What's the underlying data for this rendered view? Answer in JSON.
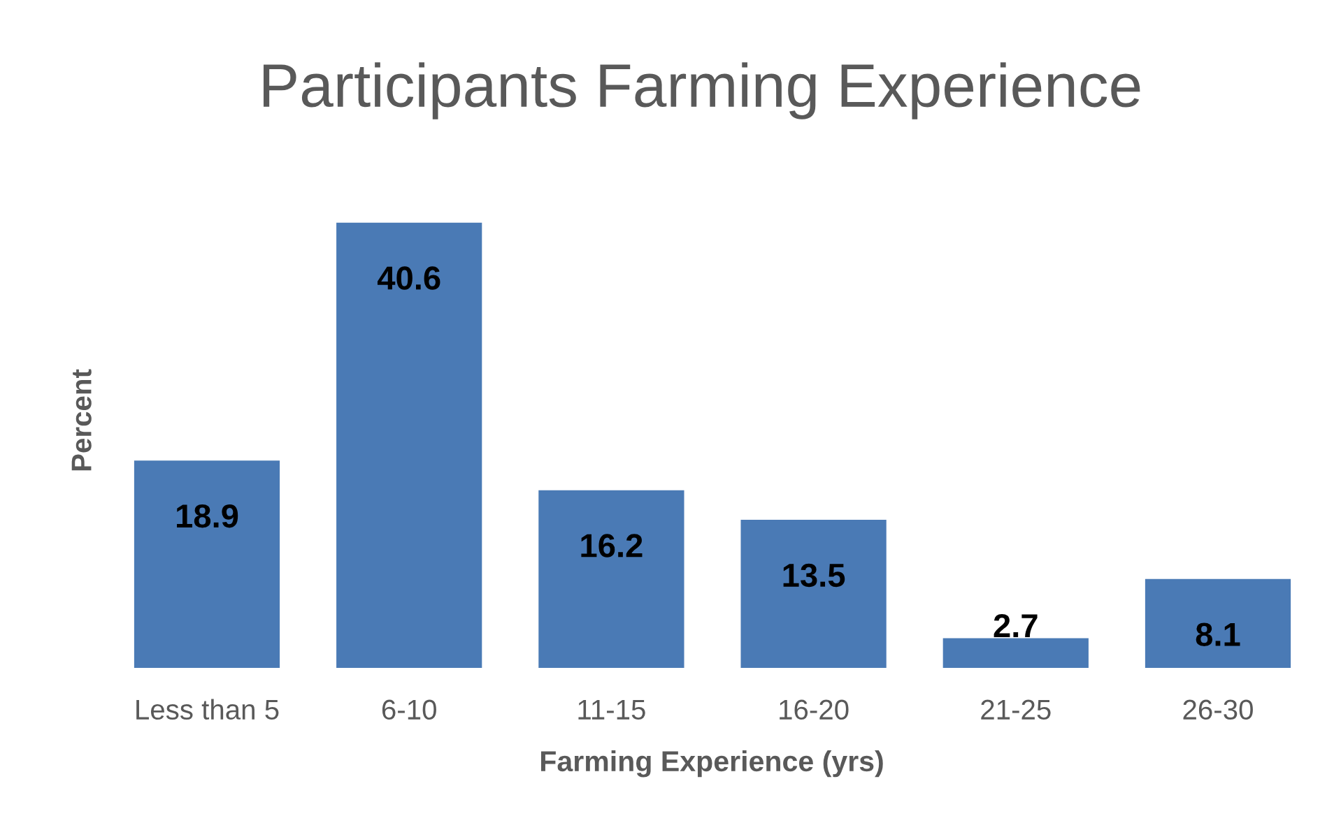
{
  "chart_data": {
    "type": "bar",
    "title": "Participants Farming Experience",
    "xlabel": "Farming Experience (yrs)",
    "ylabel": "Percent",
    "categories": [
      "Less than 5",
      "6-10",
      "11-15",
      "16-20",
      "21-25",
      "26-30"
    ],
    "values": [
      18.9,
      40.6,
      16.2,
      13.5,
      2.7,
      8.1
    ],
    "color": "#4a7ab5",
    "data_labels": true,
    "tick_labels": "x",
    "grid": false
  }
}
